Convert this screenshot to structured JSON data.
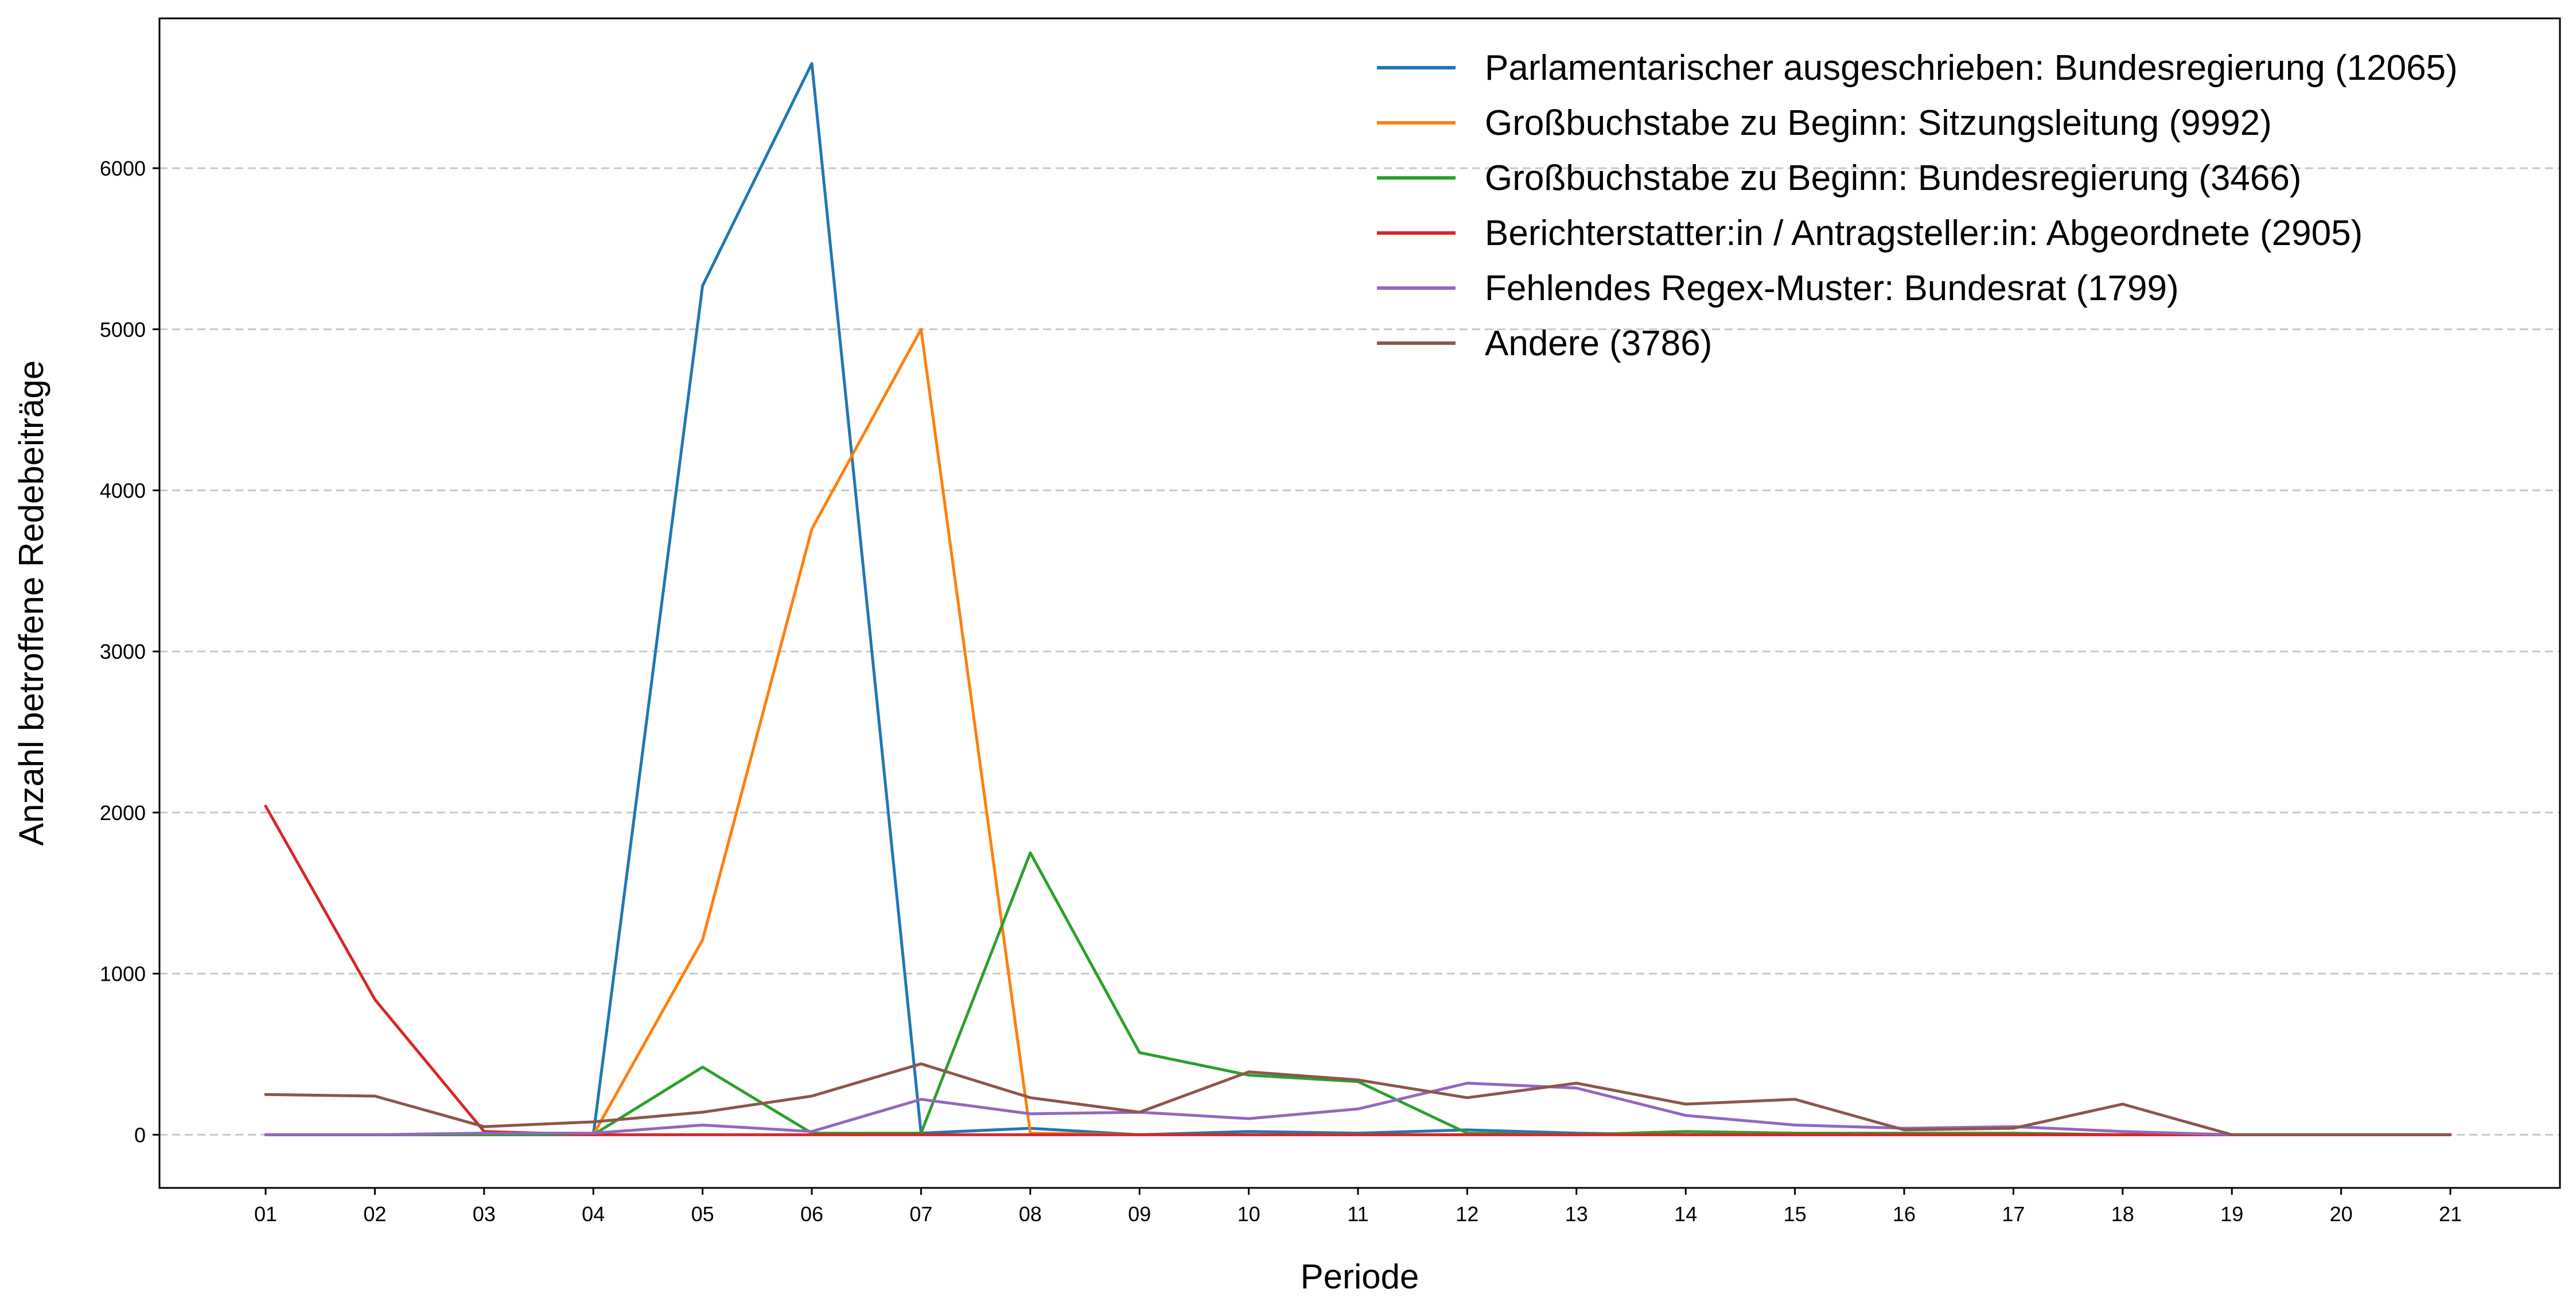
{
  "chart_data": {
    "type": "line",
    "xlabel": "Periode",
    "ylabel": "Anzahl betroffene Redebeiträge",
    "categories": [
      "01",
      "02",
      "03",
      "04",
      "05",
      "06",
      "07",
      "08",
      "09",
      "10",
      "11",
      "12",
      "13",
      "14",
      "15",
      "16",
      "17",
      "18",
      "19",
      "20",
      "21"
    ],
    "ylim": [
      -330,
      6930
    ],
    "yticks": [
      0,
      1000,
      2000,
      3000,
      4000,
      5000,
      6000
    ],
    "grid": "horizontal-dashed",
    "legend": "top-right",
    "series": [
      {
        "name": "Parlamentarischer ausgeschrieben: Bundesregierung (12065)",
        "color": "#1f77b4",
        "values": [
          0,
          0,
          0,
          0,
          5270,
          6650,
          10,
          40,
          0,
          20,
          10,
          30,
          10,
          0,
          0,
          0,
          0,
          0,
          0,
          0,
          0
        ]
      },
      {
        "name": "Großbuchstabe zu Beginn: Sitzungsleitung (9992)",
        "color": "#ff7f0e",
        "values": [
          0,
          0,
          0,
          0,
          1210,
          3760,
          5000,
          10,
          0,
          0,
          0,
          0,
          0,
          0,
          0,
          0,
          0,
          0,
          0,
          0,
          0
        ]
      },
      {
        "name": "Großbuchstabe zu Beginn: Bundesregierung (3466)",
        "color": "#2ca02c",
        "values": [
          0,
          0,
          0,
          0,
          420,
          10,
          10,
          1750,
          510,
          370,
          330,
          10,
          0,
          20,
          10,
          10,
          10,
          0,
          0,
          0,
          0
        ]
      },
      {
        "name": "Berichterstatter:in / Antragsteller:in: Abgeordnete (2905)",
        "color": "#d62728",
        "values": [
          2040,
          840,
          20,
          0,
          0,
          0,
          0,
          0,
          0,
          0,
          0,
          0,
          0,
          0,
          0,
          0,
          0,
          0,
          0,
          0,
          0
        ]
      },
      {
        "name": "Fehlendes Regex-Muster: Bundesrat (1799)",
        "color": "#9467bd",
        "values": [
          0,
          0,
          10,
          10,
          60,
          20,
          220,
          130,
          140,
          100,
          160,
          320,
          290,
          120,
          60,
          40,
          50,
          20,
          0,
          0,
          0
        ]
      },
      {
        "name": "Andere (3786)",
        "color": "#8c564b",
        "values": [
          250,
          240,
          50,
          80,
          140,
          240,
          440,
          230,
          140,
          390,
          340,
          230,
          320,
          190,
          220,
          30,
          40,
          190,
          0,
          0,
          0
        ]
      }
    ]
  }
}
